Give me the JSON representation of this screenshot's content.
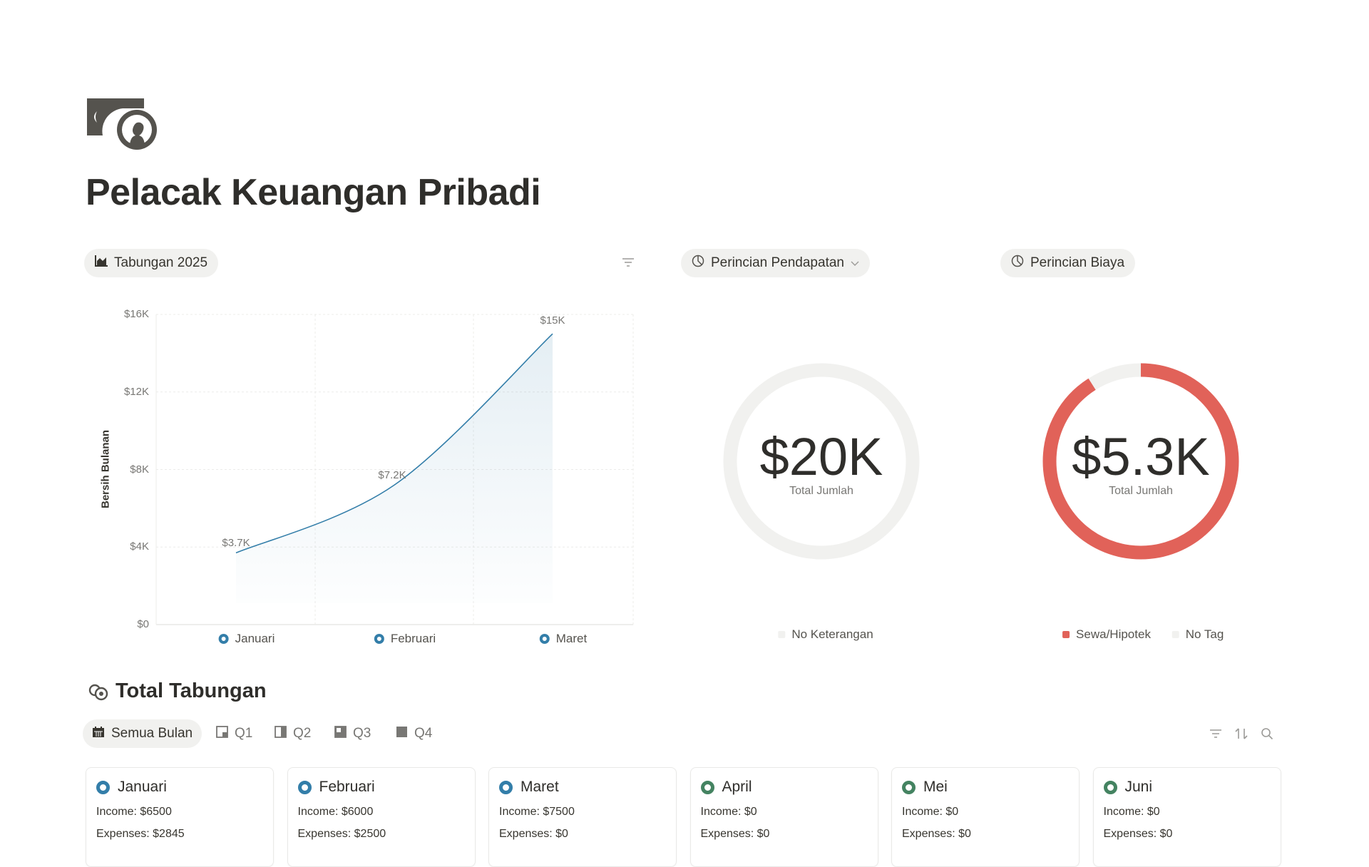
{
  "page": {
    "title": "Pelacak Keuangan Pribadi",
    "icon": "money-coin-icon"
  },
  "savings_chart": {
    "chip_label": "Tabungan 2025",
    "icon": "area-chart-icon",
    "filter_icon": "filter-icon"
  },
  "income_breakdown": {
    "chip_label": "Perincian Pendapatan",
    "icon": "pie-chart-icon",
    "chevron": "chevron-down-icon",
    "total": "$20K",
    "total_label": "Total Jumlah",
    "legend": [
      {
        "label": "No Keterangan",
        "color": "#f1f1ef"
      }
    ],
    "slices": [
      {
        "label": "No Keterangan",
        "fraction": 1.0,
        "color": "#f1f1ef"
      }
    ]
  },
  "expense_breakdown": {
    "chip_label": "Perincian Biaya",
    "icon": "pie-chart-icon",
    "total": "$5.3K",
    "total_label": "Total Jumlah",
    "legend": [
      {
        "label": "Sewa/Hipotek",
        "color": "#e16259"
      },
      {
        "label": "No Tag",
        "color": "#f1f1ef"
      }
    ],
    "slices": [
      {
        "label": "Sewa/Hipotek",
        "fraction": 0.91,
        "color": "#e16259"
      },
      {
        "label": "No Tag",
        "fraction": 0.09,
        "color": "#f1f1ef"
      }
    ]
  },
  "chart_data": {
    "type": "area",
    "categories": [
      "Januari",
      "Februari",
      "Maret"
    ],
    "values": [
      3700,
      7200,
      15000
    ],
    "data_labels": [
      "$3.7K",
      "$7.2K",
      "$15K"
    ],
    "ylabel": "Bersih Bulanan",
    "ylim": [
      0,
      16000
    ],
    "yticks": [
      "$0",
      "$4K",
      "$8K",
      "$12K",
      "$16K"
    ],
    "ytick_values": [
      0,
      4000,
      8000,
      12000,
      16000
    ],
    "grid": true,
    "legend": "bottom",
    "color": "#337ea9"
  },
  "total_savings": {
    "heading": "Total Tabungan",
    "icon": "coins-icon",
    "tabs": [
      {
        "label": "Semua Bulan",
        "icon": "calendar-icon",
        "active": true
      },
      {
        "label": "Q1",
        "icon": "quarter-icon"
      },
      {
        "label": "Q2",
        "icon": "quarter-icon"
      },
      {
        "label": "Q3",
        "icon": "quarter-icon"
      },
      {
        "label": "Q4",
        "icon": "quarter-icon"
      }
    ],
    "tools": [
      "filter-icon",
      "sort-icon",
      "search-icon"
    ],
    "cards": [
      {
        "month": "Januari",
        "income": "Income: $6500",
        "expenses": "Expenses: $2845",
        "color": "#337ea9"
      },
      {
        "month": "Februari",
        "income": "Income: $6000",
        "expenses": "Expenses: $2500",
        "color": "#337ea9"
      },
      {
        "month": "Maret",
        "income": "Income: $7500",
        "expenses": "Expenses: $0",
        "color": "#337ea9"
      },
      {
        "month": "April",
        "income": "Income: $0",
        "expenses": "Expenses: $0",
        "color": "#448361"
      },
      {
        "month": "Mei",
        "income": "Income: $0",
        "expenses": "Expenses: $0",
        "color": "#448361"
      },
      {
        "month": "Juni",
        "income": "Income: $0",
        "expenses": "Expenses: $0",
        "color": "#448361"
      }
    ]
  }
}
